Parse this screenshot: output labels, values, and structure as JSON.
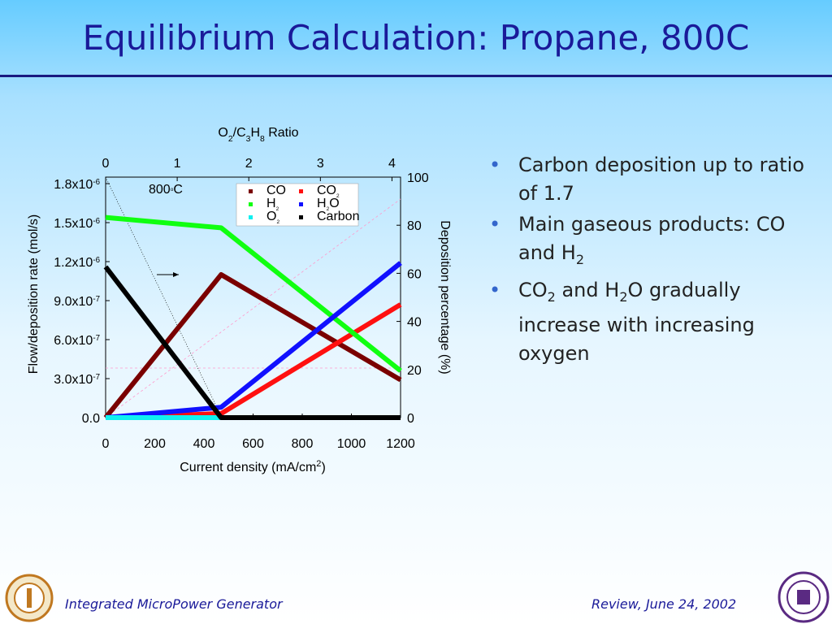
{
  "title": "Equilibrium Calculation: Propane, 800C",
  "bullets": [
    [
      "Carbon deposition up to ratio of 1.7"
    ],
    [
      "Main gaseous products: CO and H",
      {
        "sub": "2"
      }
    ],
    [
      "CO",
      {
        "sub": "2"
      },
      " and H",
      {
        "sub": "2"
      },
      "O gradually increase with increasing oxygen"
    ]
  ],
  "footer_left": "Integrated MicroPower Generator",
  "footer_right": "Review, June 24, 2002",
  "chart_data": {
    "type": "line",
    "x2_label": [
      "O",
      {
        "sub": "2"
      },
      "/C",
      {
        "sub": "3"
      },
      "H",
      {
        "sub": "8"
      },
      " Ratio"
    ],
    "x_label": [
      "Current density (mA/cm",
      {
        "sup": "2"
      },
      ")"
    ],
    "y_label": "Flow/deposition rate (mol/s)",
    "y2_label": "Deposition percentage (%)",
    "annotation": [
      "800",
      {
        "sup": "o"
      },
      "C"
    ],
    "x": [
      0,
      470,
      1200
    ],
    "xlim": [
      0,
      1200
    ],
    "xticks": [
      0,
      200,
      400,
      600,
      800,
      1000,
      1200
    ],
    "x2lim": [
      0,
      4.12
    ],
    "x2ticks": [
      0,
      1,
      2,
      3,
      4
    ],
    "ylim": [
      0,
      1.85e-06
    ],
    "yticks": [
      {
        "value": 0,
        "label": "0.0"
      },
      {
        "value": 3e-07,
        "label": [
          "3.0x10",
          {
            "sup": "-7"
          }
        ]
      },
      {
        "value": 6e-07,
        "label": [
          "6.0x10",
          {
            "sup": "-7"
          }
        ]
      },
      {
        "value": 9e-07,
        "label": [
          "9.0x10",
          {
            "sup": "-7"
          }
        ]
      },
      {
        "value": 1.2e-06,
        "label": [
          "1.2x10",
          {
            "sup": "-6"
          }
        ]
      },
      {
        "value": 1.5e-06,
        "label": [
          "1.5x10",
          {
            "sup": "-6"
          }
        ]
      },
      {
        "value": 1.8e-06,
        "label": [
          "1.8x10",
          {
            "sup": "-6"
          }
        ]
      }
    ],
    "y2lim": [
      0,
      100
    ],
    "y2ticks": [
      0,
      20,
      40,
      60,
      80,
      100
    ],
    "series": [
      {
        "name": "CO",
        "color": "#7a0000",
        "values": [
          0,
          1.1e-06,
          2.9e-07
        ]
      },
      {
        "name": [
          "CO",
          {
            "sub": "2"
          }
        ],
        "color": "#ff1010",
        "values": [
          0,
          3.1e-08,
          8.7e-07
        ]
      },
      {
        "name": [
          "H",
          {
            "sub": "2"
          }
        ],
        "color": "#10ff10",
        "values": [
          1.54e-06,
          1.46e-06,
          3.6e-07
        ]
      },
      {
        "name": [
          "H",
          {
            "sub": "2"
          },
          "O"
        ],
        "color": "#1010ff",
        "values": [
          0,
          8e-08,
          1.19e-06
        ]
      },
      {
        "name": [
          "O",
          {
            "sub": "2"
          }
        ],
        "color": "#10f0f0",
        "values": [
          0,
          0,
          0
        ]
      },
      {
        "name": "Carbon",
        "color": "#000000",
        "values": [
          1.16e-06,
          0,
          0
        ]
      }
    ]
  }
}
